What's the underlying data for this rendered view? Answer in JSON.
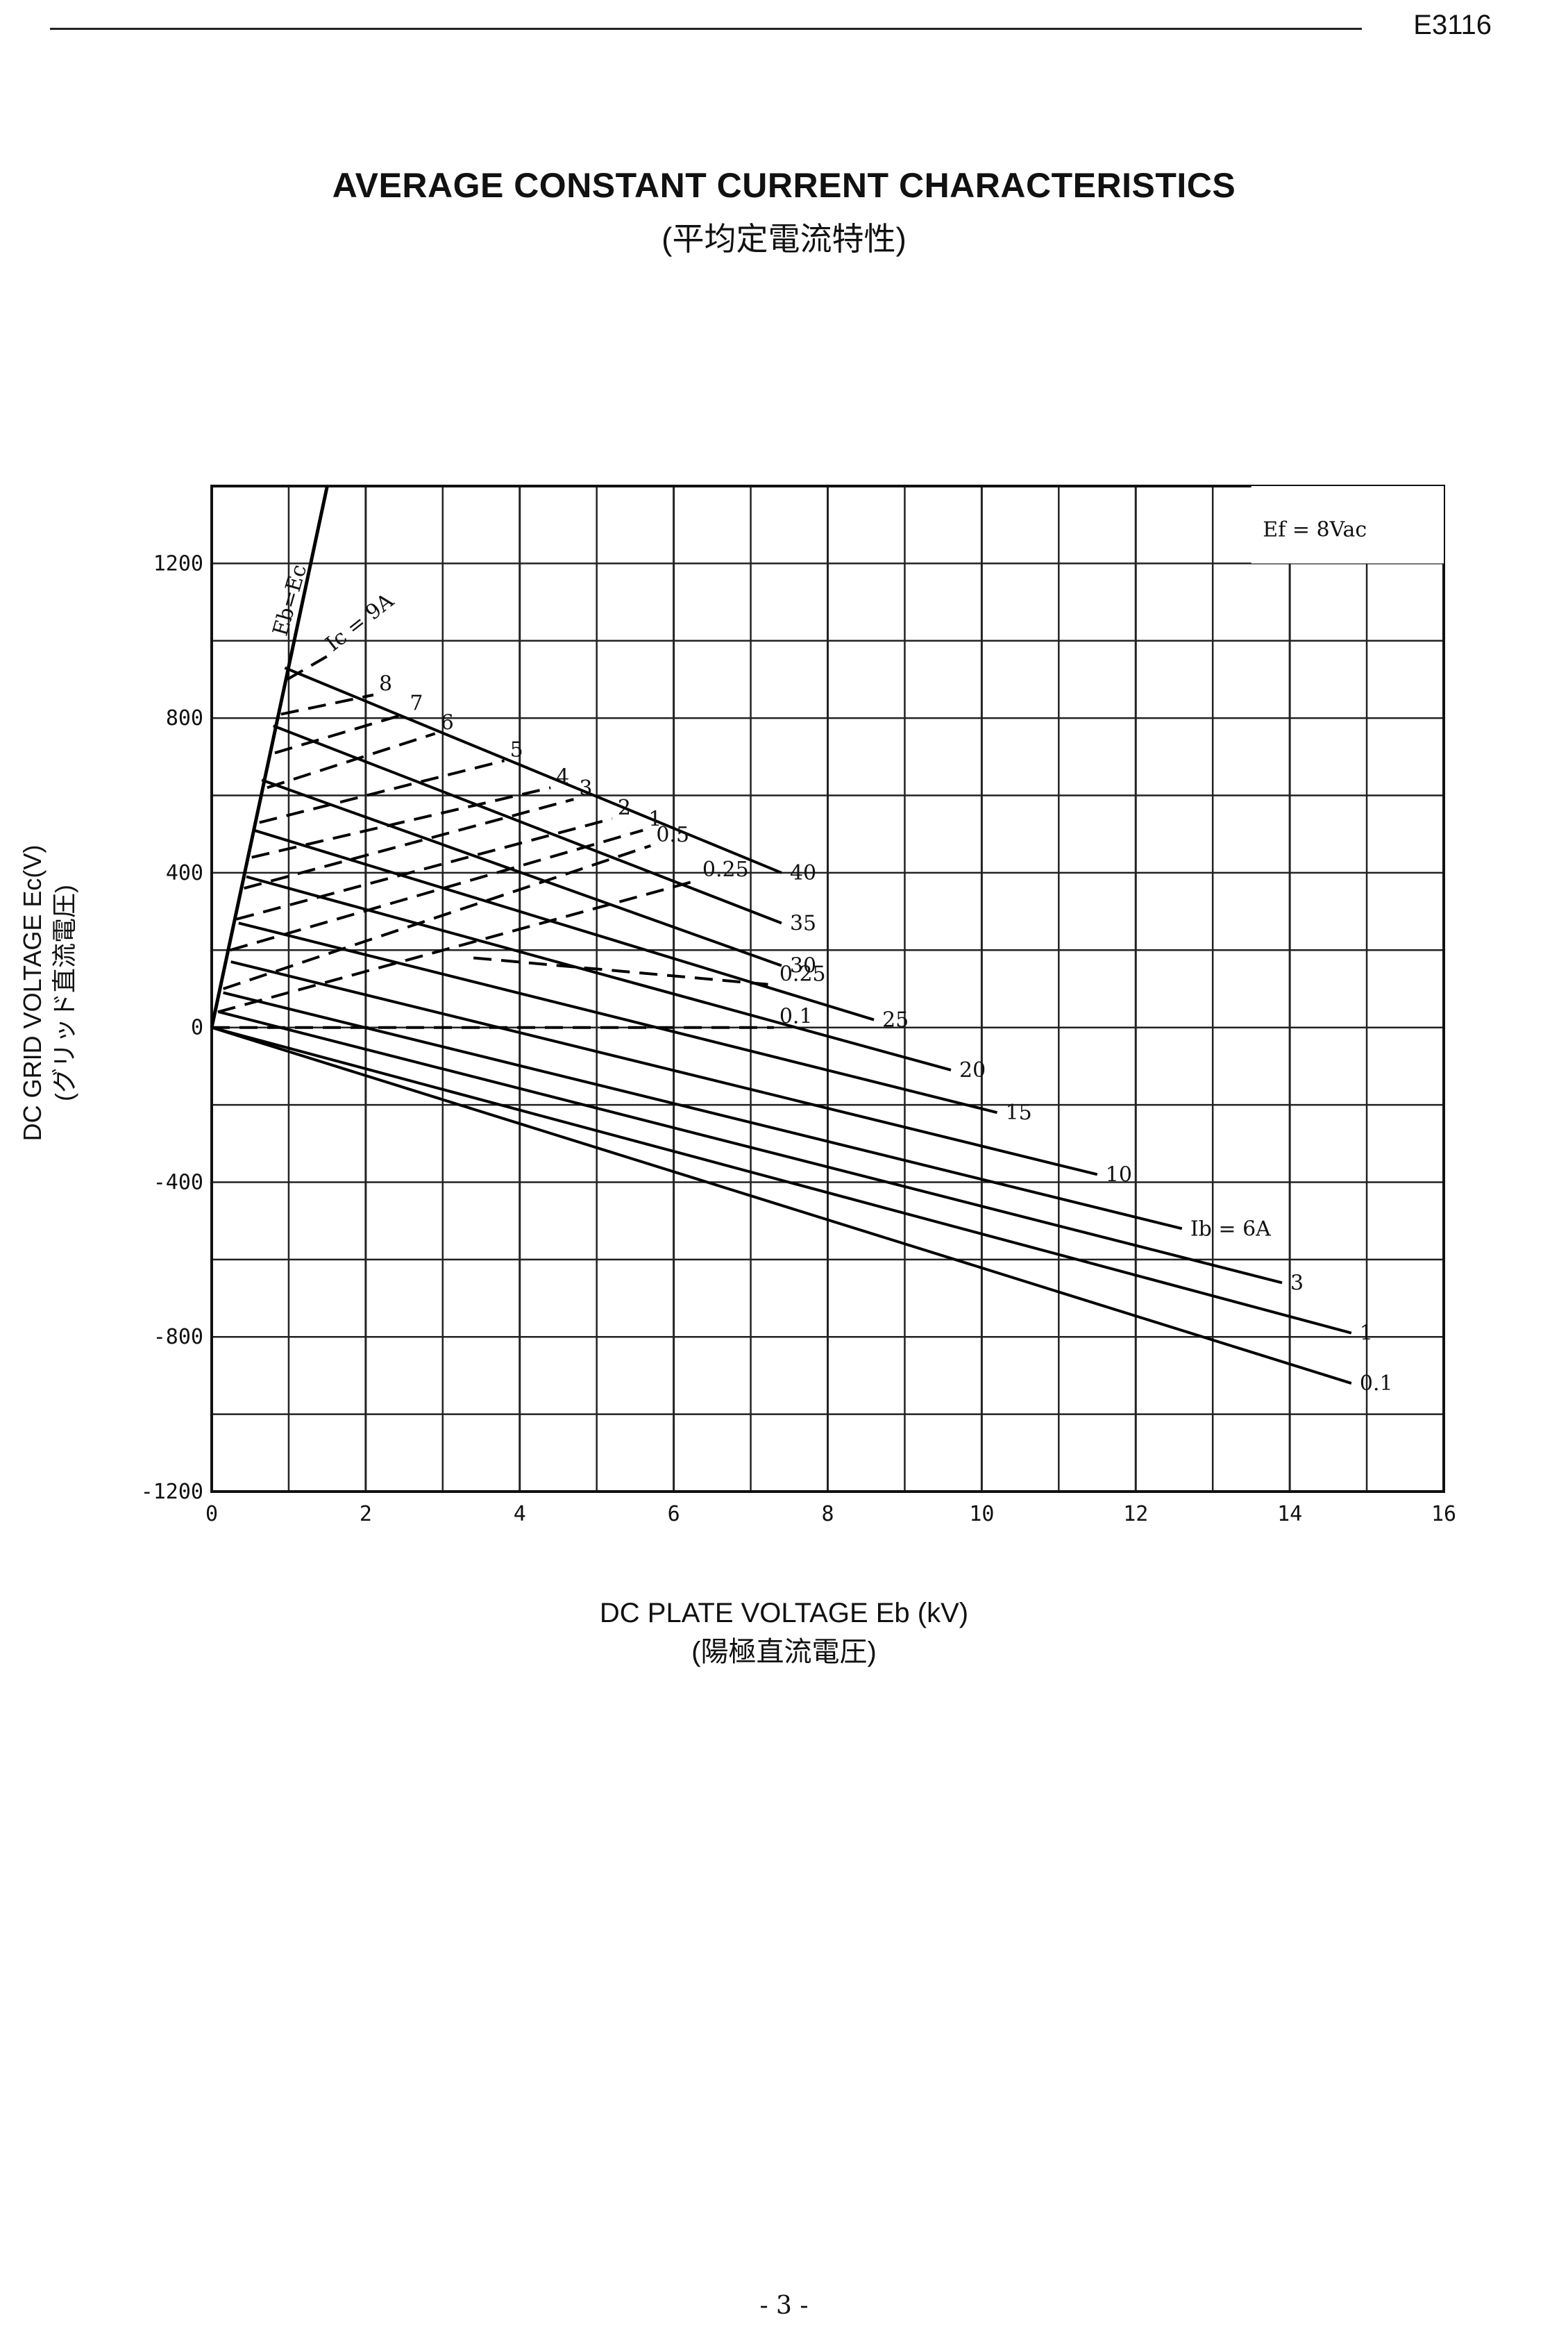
{
  "document": {
    "code": "E3116",
    "page_number": "- 3 -"
  },
  "chart_data": {
    "type": "line",
    "title": "AVERAGE CONSTANT CURRENT CHARACTERISTICS",
    "subtitle": "(平均定電流特性)",
    "xlabel": "DC PLATE VOLTAGE Eb (kV)",
    "xlabel_sub": "(陽極直流電圧)",
    "ylabel": "DC GRID VOLTAGE Ec(V)",
    "ylabel_sub": "(グリッド直流電圧)",
    "xlim": [
      0,
      16
    ],
    "ylim": [
      -1200,
      1400
    ],
    "x_ticks": [
      "0",
      "2",
      "4",
      "6",
      "8",
      "10",
      "12",
      "14",
      "16"
    ],
    "y_ticks": [
      {
        "value": 1200,
        "label": "1200"
      },
      {
        "value": 800,
        "label": "800"
      },
      {
        "value": 400,
        "label": "400"
      },
      {
        "value": 0,
        "label": "0"
      },
      {
        "value": -400,
        "label": "-400"
      },
      {
        "value": -800,
        "label": "-800"
      },
      {
        "value": -1200,
        "label": "-1200"
      }
    ],
    "grid": true,
    "annotation": "Ef = 8Vac",
    "boundary": {
      "name": "Eb=Ec",
      "points": [
        [
          0,
          0
        ],
        [
          1.5,
          1400
        ]
      ]
    },
    "series_plate_current": [
      {
        "name": "40",
        "label": "40",
        "points": [
          [
            0.95,
            930
          ],
          [
            7.4,
            400
          ]
        ]
      },
      {
        "name": "35",
        "label": "35",
        "points": [
          [
            0.8,
            780
          ],
          [
            7.4,
            270
          ]
        ]
      },
      {
        "name": "30",
        "label": "30",
        "points": [
          [
            0.65,
            640
          ],
          [
            7.4,
            160
          ]
        ]
      },
      {
        "name": "25",
        "label": "25",
        "points": [
          [
            0.55,
            510
          ],
          [
            8.6,
            20
          ]
        ]
      },
      {
        "name": "20",
        "label": "20",
        "points": [
          [
            0.45,
            390
          ],
          [
            9.6,
            -110
          ]
        ]
      },
      {
        "name": "15",
        "label": "15",
        "points": [
          [
            0.35,
            270
          ],
          [
            10.2,
            -220
          ]
        ]
      },
      {
        "name": "10",
        "label": "10",
        "points": [
          [
            0.25,
            170
          ],
          [
            11.5,
            -380
          ]
        ]
      },
      {
        "name": "6",
        "label": "Ib = 6A",
        "points": [
          [
            0.15,
            90
          ],
          [
            12.6,
            -520
          ]
        ]
      },
      {
        "name": "3",
        "label": "3",
        "points": [
          [
            0.1,
            40
          ],
          [
            13.9,
            -660
          ]
        ]
      },
      {
        "name": "1",
        "label": "1",
        "points": [
          [
            0,
            0
          ],
          [
            14.8,
            -790
          ]
        ]
      },
      {
        "name": "0.1",
        "label": "0.1",
        "points": [
          [
            0,
            0
          ],
          [
            14.8,
            -920
          ]
        ]
      }
    ],
    "series_grid_current": [
      {
        "name": "9",
        "label": "Ic = 9A",
        "points": [
          [
            0.98,
            900
          ],
          [
            1.5,
            960
          ]
        ]
      },
      {
        "name": "8",
        "label": "8",
        "points": [
          [
            0.9,
            810
          ],
          [
            2.1,
            860
          ]
        ]
      },
      {
        "name": "7",
        "label": "7",
        "points": [
          [
            0.82,
            710
          ],
          [
            2.5,
            810
          ]
        ]
      },
      {
        "name": "6",
        "label": "6",
        "points": [
          [
            0.72,
            620
          ],
          [
            2.9,
            760
          ]
        ]
      },
      {
        "name": "5",
        "label": "5",
        "points": [
          [
            0.62,
            530
          ],
          [
            3.8,
            690
          ]
        ]
      },
      {
        "name": "4",
        "label": "4",
        "points": [
          [
            0.52,
            440
          ],
          [
            4.4,
            620
          ]
        ]
      },
      {
        "name": "3",
        "label": "3",
        "points": [
          [
            0.42,
            360
          ],
          [
            4.7,
            590
          ]
        ]
      },
      {
        "name": "2",
        "label": "2",
        "points": [
          [
            0.32,
            280
          ],
          [
            5.2,
            540
          ]
        ]
      },
      {
        "name": "1",
        "label": "1",
        "points": [
          [
            0.24,
            200
          ],
          [
            5.6,
            510
          ]
        ]
      },
      {
        "name": "0.5",
        "label": "0.5",
        "points": [
          [
            0.15,
            100
          ],
          [
            5.7,
            470
          ]
        ]
      },
      {
        "name": "0.25",
        "label": "0.25",
        "points": [
          [
            0.08,
            40
          ],
          [
            6.3,
            380
          ]
        ]
      },
      {
        "name": "0.25b",
        "label": "0.25",
        "points": [
          [
            3.4,
            180
          ],
          [
            7.3,
            110
          ]
        ]
      },
      {
        "name": "0.1",
        "label": "0.1",
        "points": [
          [
            0,
            0
          ],
          [
            7.3,
            0
          ]
        ]
      }
    ]
  }
}
